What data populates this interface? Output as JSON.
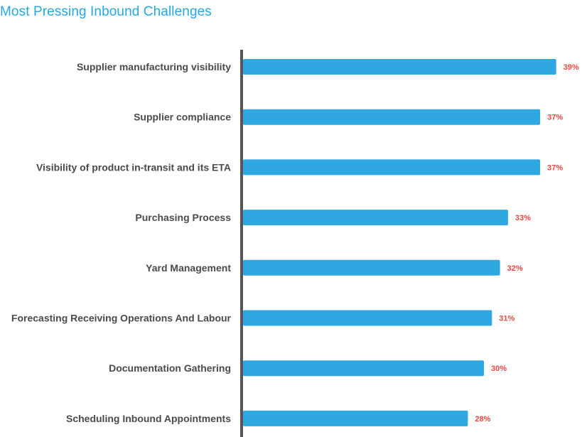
{
  "chart_data": {
    "type": "bar",
    "orientation": "horizontal",
    "title": "Most Pressing Inbound Challenges",
    "categories": [
      "Supplier manufacturing visibility",
      "Supplier compliance",
      "Visibility of product in-transit and its ETA",
      "Purchasing Process",
      "Yard Management",
      "Forecasting Receiving Operations And Labour",
      "Documentation Gathering",
      "Scheduling Inbound Appointments"
    ],
    "values": [
      39,
      37,
      37,
      33,
      32,
      31,
      30,
      28
    ],
    "value_labels": [
      "39%",
      "37%",
      "37%",
      "33%",
      "32%",
      "31%",
      "30%",
      "28%"
    ],
    "unit": "%",
    "xlim": [
      0,
      40
    ],
    "grid": false,
    "legend": "none"
  },
  "colors": {
    "bar": "#2fa8e2",
    "axis": "#555555",
    "value_label": "#e9473f",
    "title": "#27a7df",
    "category_label": "#4a4a4a"
  }
}
